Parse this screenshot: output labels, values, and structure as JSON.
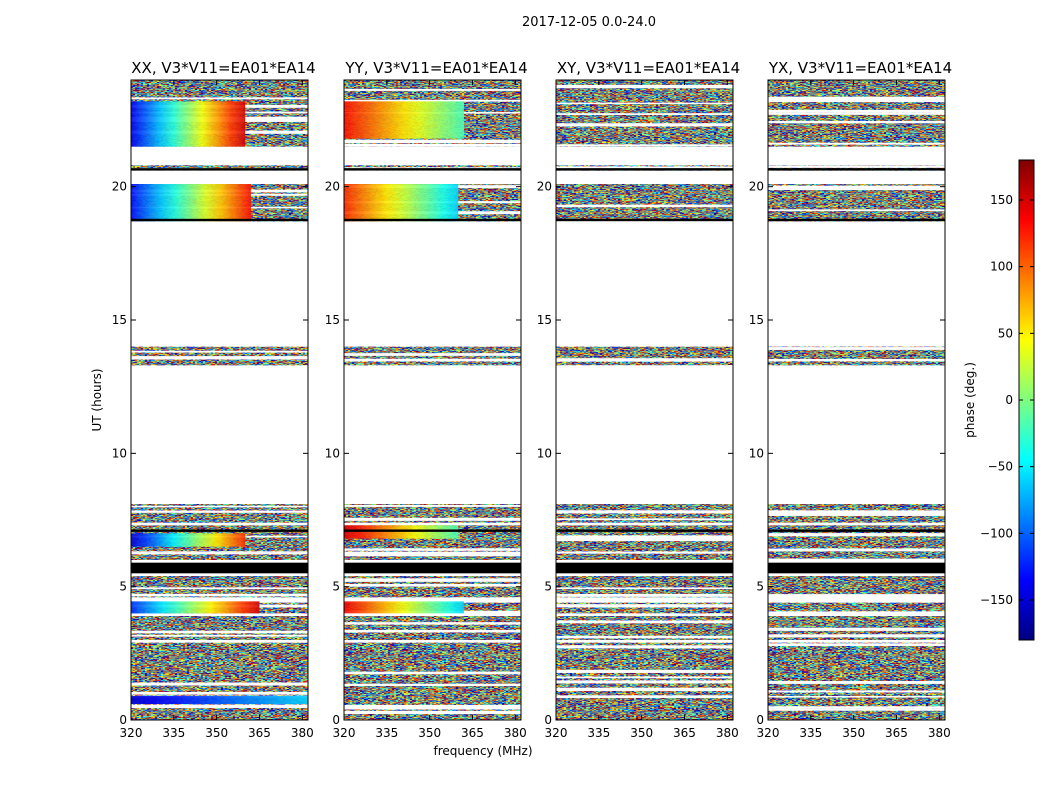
{
  "chart_data": {
    "type": "heatmap",
    "title": "2017-12-05 0.0-24.0",
    "xlabel": "frequency (MHz)",
    "ylabel": "UT (hours)",
    "xlim": [
      320,
      382
    ],
    "ylim": [
      0,
      24
    ],
    "x_ticks": [
      "320",
      "335",
      "350",
      "365",
      "380"
    ],
    "x_tick_values": [
      320,
      335,
      350,
      365,
      380
    ],
    "y_ticks": [
      "0",
      "5",
      "10",
      "15",
      "20"
    ],
    "y_tick_values": [
      0,
      5,
      10,
      15,
      20
    ],
    "colorbar": {
      "label": "phase (deg.)",
      "range": [
        -180,
        180
      ],
      "ticks": [
        "150",
        "100",
        "50",
        "0",
        "−50",
        "−100",
        "−150"
      ],
      "tick_values": [
        150,
        100,
        50,
        0,
        -50,
        -100,
        -150
      ],
      "colormap": "jet",
      "colors": [
        "#00007f",
        "#0000ff",
        "#007fff",
        "#00ffff",
        "#7fff7f",
        "#ffff00",
        "#ff7f00",
        "#ff0000",
        "#7f0000"
      ]
    },
    "data_bands_hours": [
      [
        0.0,
        2.9
      ],
      [
        3.0,
        3.9
      ],
      [
        4.0,
        4.4
      ],
      [
        4.6,
        5.4
      ],
      [
        6.0,
        7.3
      ],
      [
        7.4,
        8.1
      ],
      [
        13.3,
        14.0
      ],
      [
        18.7,
        20.1
      ],
      [
        20.6,
        20.8
      ],
      [
        21.5,
        24.0
      ]
    ],
    "flagged_black_lines_hours": [
      5.6,
      5.75,
      7.1,
      18.75,
      20.65
    ],
    "panels": [
      {
        "title": "XX, V3*V11=EA01*EA14",
        "coherent_bands": [
          {
            "t0": 4.0,
            "t1": 4.45,
            "phase_start": -120,
            "phase_end": 150,
            "freq_end": 365
          },
          {
            "t0": 6.5,
            "t1": 7.0,
            "phase_start": -150,
            "phase_end": 120,
            "freq_end": 360
          },
          {
            "t0": 18.7,
            "t1": 20.1,
            "phase_start": -130,
            "phase_end": 130,
            "freq_end": 362
          },
          {
            "t0": 21.5,
            "t1": 23.2,
            "phase_start": -140,
            "phase_end": 150,
            "freq_end": 360
          },
          {
            "t0": 0.6,
            "t1": 0.9,
            "phase_start": -150,
            "phase_end": -60,
            "freq_end": 382
          }
        ]
      },
      {
        "title": "YY, V3*V11=EA01*EA14",
        "coherent_bands": [
          {
            "t0": 4.0,
            "t1": 4.45,
            "phase_start": 140,
            "phase_end": -60,
            "freq_end": 362
          },
          {
            "t0": 6.8,
            "t1": 7.3,
            "phase_start": 150,
            "phase_end": -20,
            "freq_end": 360
          },
          {
            "t0": 18.7,
            "t1": 20.1,
            "phase_start": 120,
            "phase_end": -60,
            "freq_end": 360
          },
          {
            "t0": 21.8,
            "t1": 23.2,
            "phase_start": 130,
            "phase_end": -20,
            "freq_end": 362
          }
        ]
      },
      {
        "title": "XY, V3*V11=EA01*EA14",
        "coherent_bands": []
      },
      {
        "title": "YX, V3*V11=EA01*EA14",
        "coherent_bands": []
      }
    ]
  }
}
